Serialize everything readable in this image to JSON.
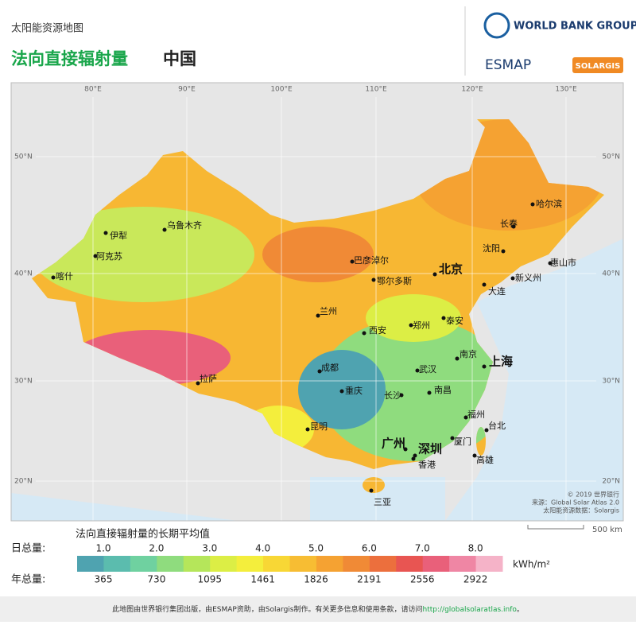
{
  "header": {
    "title": "太阳能资源地图",
    "subtitle": "法向直接辐射量",
    "country": "中国"
  },
  "logos": {
    "world_bank": "WORLD BANK GROUP",
    "esmap": "ESMAP",
    "solargis": "SOLARGIS"
  },
  "map": {
    "lon_labels": [
      "80°E",
      "90°E",
      "100°E",
      "110°E",
      "120°E",
      "130°E"
    ],
    "lat_labels": [
      "50°N",
      "40°N",
      "30°N",
      "20°N"
    ],
    "cities": [
      "伊犁",
      "乌鲁木齐",
      "阿克苏",
      "喀什",
      "拉萨",
      "兰州",
      "西安",
      "成都",
      "重庆",
      "昆明",
      "巴彦淖尔",
      "鄂尔多斯",
      "北京",
      "郑州",
      "泰安",
      "武汉",
      "长沙",
      "南昌",
      "南京",
      "上海",
      "福州",
      "台北",
      "厦门",
      "高雄",
      "广州",
      "深圳",
      "香港",
      "三亚",
      "哈尔滨",
      "长春",
      "沈阳",
      "大连",
      "新义州",
      "惠山市"
    ],
    "credits": [
      "© 2019 世界银行",
      "来源：Global Solar Atlas 2.0",
      "太阳能资源数据：Solargis"
    ],
    "scale": "500 km"
  },
  "legend": {
    "title": "法向直接辐射量的长期平均值",
    "daily_label": "日总量:",
    "annual_label": "年总量:",
    "daily": [
      "1.0",
      "2.0",
      "3.0",
      "4.0",
      "5.0",
      "6.0",
      "7.0",
      "8.0"
    ],
    "annual": [
      "365",
      "730",
      "1095",
      "1461",
      "1826",
      "2191",
      "2556",
      "2922"
    ],
    "unit": "kWh/m²",
    "colors": [
      "#4fa3b0",
      "#5bbcae",
      "#6fd1a0",
      "#8fdc7e",
      "#b5e65a",
      "#dcee45",
      "#f4ee3c",
      "#f8d735",
      "#f7bd33",
      "#f5a232",
      "#f08a36",
      "#ec6f3d",
      "#e85552",
      "#e9607a",
      "#ef86a4",
      "#f5b3c8"
    ]
  },
  "footer": {
    "text": "此地图由世界银行集团出版，由ESMAP资助，由Solargis制作。有关更多信息和使用条款，请访问",
    "link": "http://globalsolaratlas.info",
    "end": "。"
  }
}
